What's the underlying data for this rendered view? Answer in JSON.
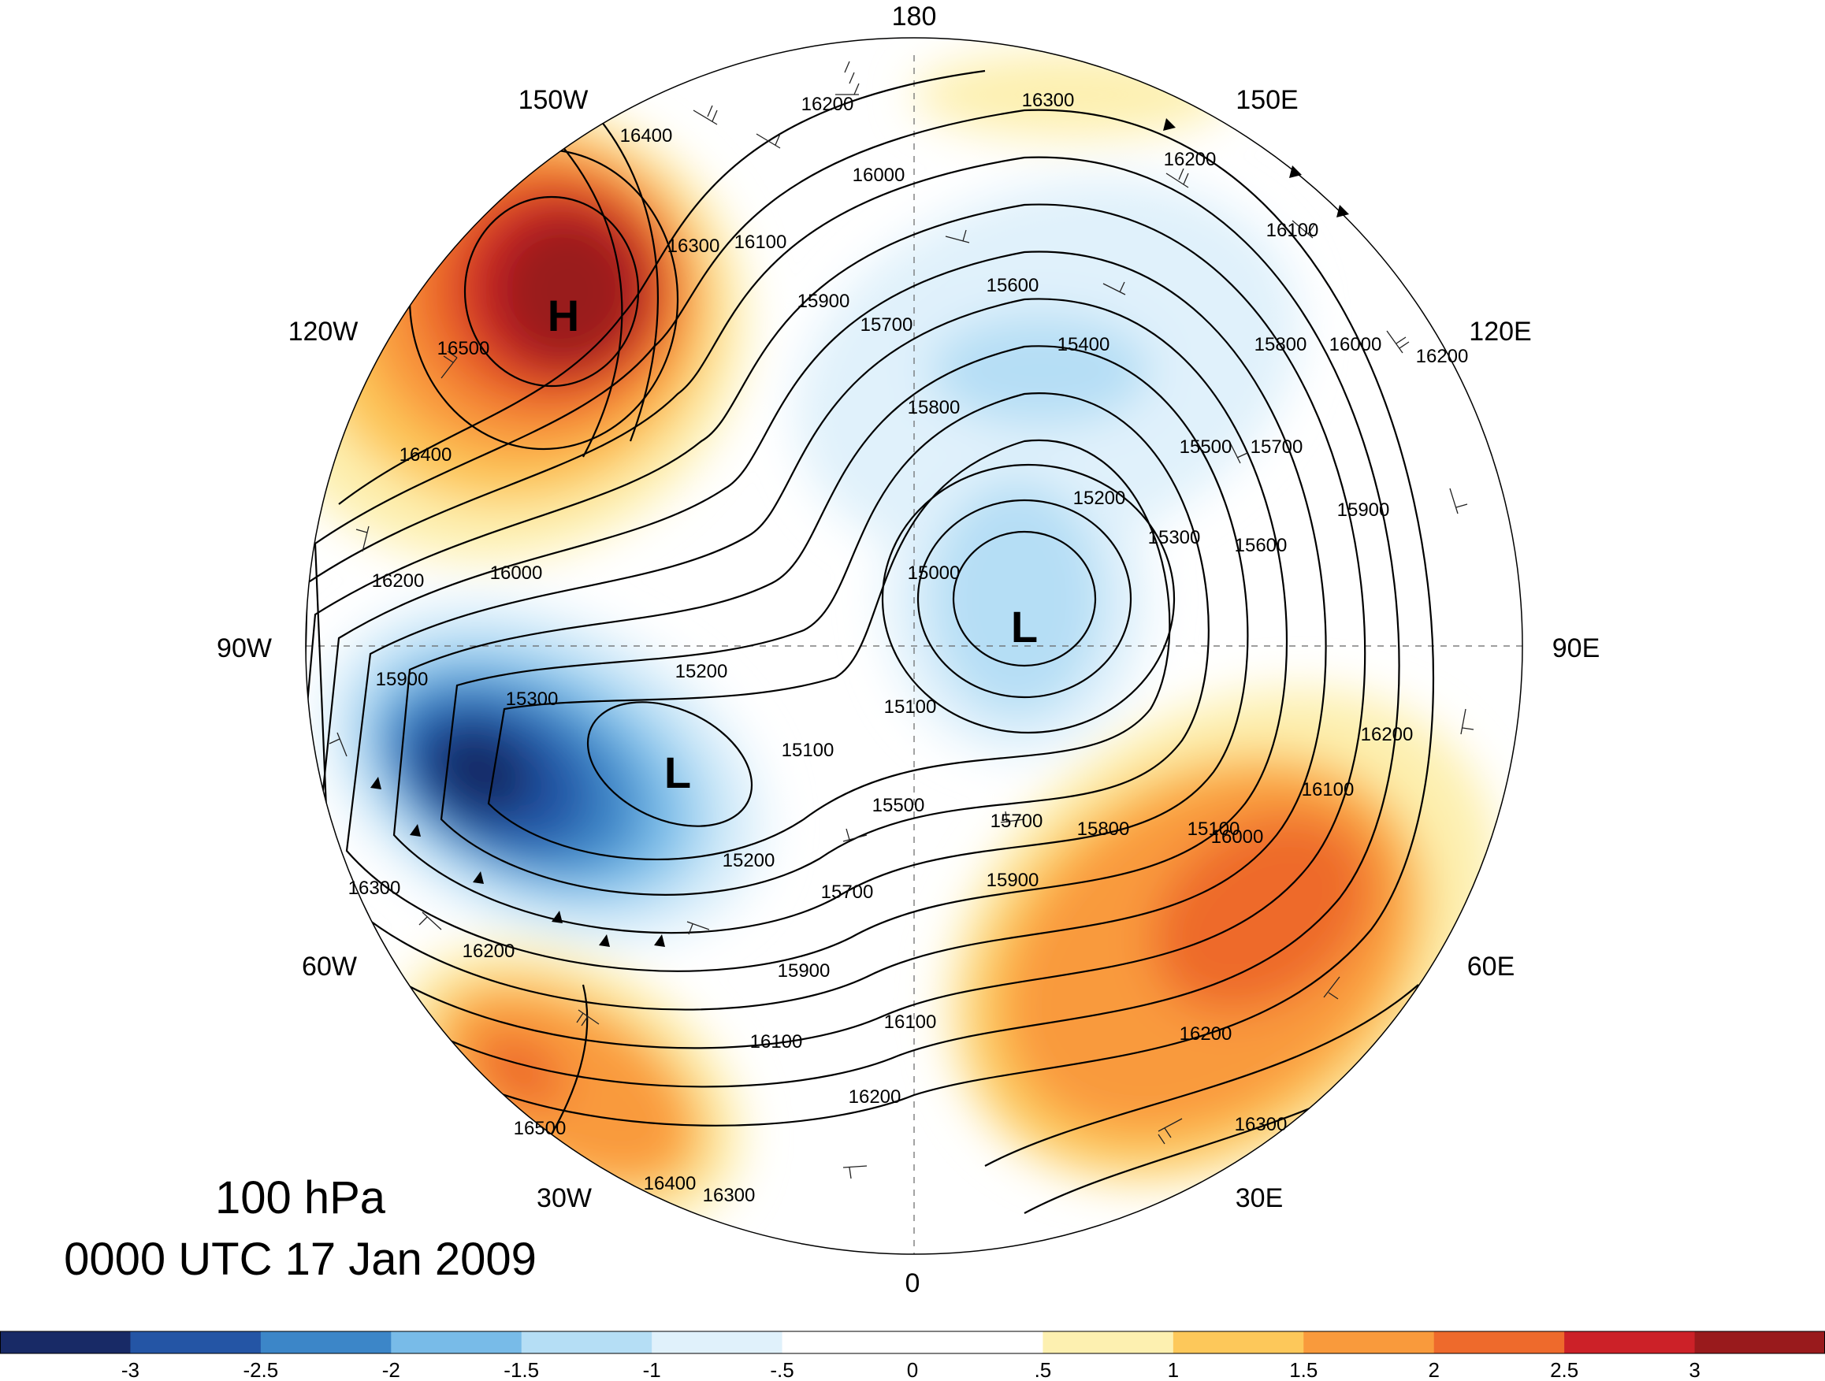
{
  "title": {
    "level": "100 hPa",
    "datetime": "0000 UTC 17 Jan 2009"
  },
  "longitude_labels": [
    "180",
    "150E",
    "120E",
    "90E",
    "60E",
    "30E",
    "0",
    "30W",
    "60W",
    "90W",
    "120W",
    "150W"
  ],
  "pressure_centers": [
    {
      "label": "H",
      "lon": "140W",
      "region": "high over Alaska / NE Pacific"
    },
    {
      "label": "L",
      "lon": "80W",
      "region": "low over Hudson Bay"
    },
    {
      "label": "L",
      "lon": "100E",
      "region": "low over Siberia"
    }
  ],
  "height_contours_m": [
    "15000",
    "15100",
    "15200",
    "15300",
    "15400",
    "15500",
    "15600",
    "15700",
    "15800",
    "15900",
    "16000",
    "16100",
    "16200",
    "16300",
    "16400",
    "16500"
  ],
  "contour_label_samples": [
    "16200",
    "16300",
    "16200",
    "16000",
    "16100",
    "16400",
    "16300",
    "16100",
    "15900",
    "15700",
    "15600",
    "15400",
    "15800",
    "16000",
    "16200",
    "15500",
    "15700",
    "15900",
    "15200",
    "15300",
    "15600",
    "15000",
    "15800",
    "16500",
    "16400",
    "16200",
    "16000",
    "15900",
    "15300",
    "15200",
    "15100",
    "15100",
    "15100",
    "15200",
    "15500",
    "15700",
    "15700",
    "15800",
    "15900",
    "15900",
    "16000",
    "16100",
    "16200",
    "16200",
    "16300",
    "16200",
    "16100",
    "16100",
    "16200",
    "16300",
    "16500",
    "16400",
    "16300"
  ],
  "colorbar": {
    "colors": [
      "#182a66",
      "#2455a5",
      "#3c86c8",
      "#78bbe8",
      "#b5def5",
      "#e0f1fb",
      "#ffffff",
      "#ffffff",
      "#fdf0b0",
      "#fdc85a",
      "#f99a3c",
      "#ee6a2c",
      "#cc2128",
      "#991a1c"
    ],
    "tick_labels": [
      "-3",
      "-2.5",
      "-2",
      "-1.5",
      "-1",
      "-.5",
      "0",
      ".5",
      "1",
      "1.5",
      "2",
      "2.5",
      "3"
    ]
  },
  "palette": {
    "frame": "#000000",
    "background": "#ffffff"
  }
}
